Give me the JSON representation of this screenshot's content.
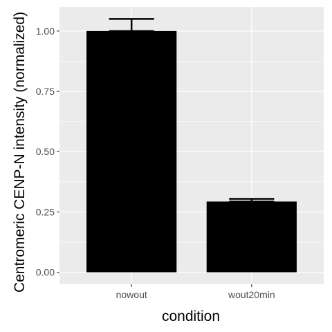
{
  "chart_data": {
    "type": "bar",
    "categories": [
      "nowout",
      "wout20min"
    ],
    "values": [
      1.0,
      0.293
    ],
    "error_upper": [
      1.05,
      0.304
    ],
    "error_lower": [
      1.0,
      0.293
    ],
    "xlabel": "condition",
    "ylabel": "Centromeric CENP-N intensity (normalized)",
    "ylim": [
      -0.05,
      1.1
    ],
    "yticks": [
      0.0,
      0.25,
      0.5,
      0.75,
      1.0
    ],
    "ytick_labels": [
      "0.00",
      "0.25",
      "0.50",
      "0.75",
      "1.00"
    ],
    "grid": true,
    "colors": {
      "panel_background": "#ebebeb",
      "grid_line": "#ffffff",
      "bar_fill": "#000000",
      "error_bar": "#000000",
      "tick_text": "#4d4d4d",
      "tick_mark": "#333333"
    }
  }
}
